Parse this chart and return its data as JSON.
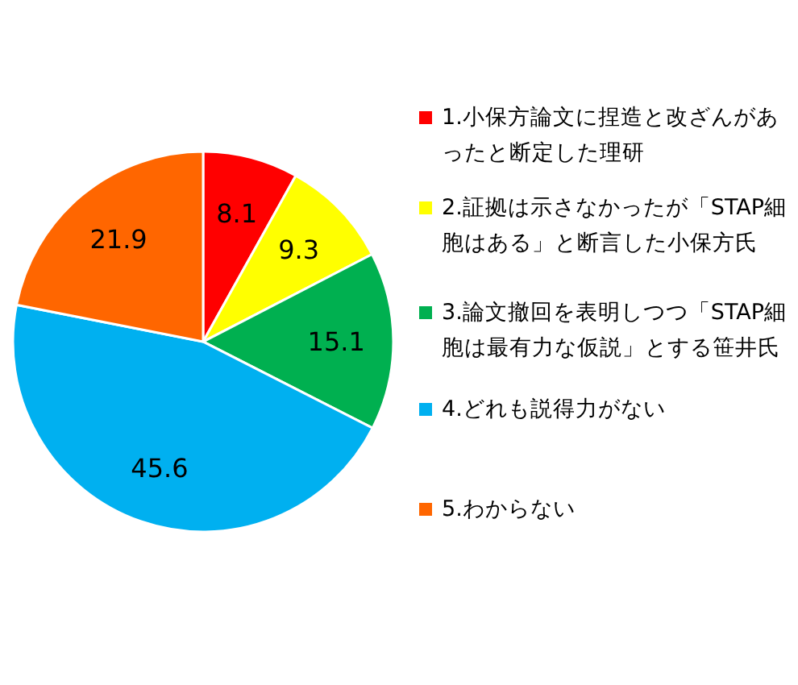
{
  "chart_data": {
    "type": "pie",
    "categories": [
      "1.小保方論文に捏造と改ざんがあったと断定した理研",
      "2.証拠は示さなかったが「STAP細胞はある」と断言した小保方氏",
      "3.論文撤回を表明しつつ「STAP細胞は最有力な仮説」とする笹井氏",
      "4.どれも説得力がない",
      "5.わからない"
    ],
    "values": [
      8.1,
      9.3,
      15.1,
      45.6,
      21.9
    ],
    "colors": [
      "#ff0000",
      "#ffff00",
      "#00b050",
      "#00b0f0",
      "#ff6600"
    ],
    "data_labels": true,
    "legend": "right"
  }
}
